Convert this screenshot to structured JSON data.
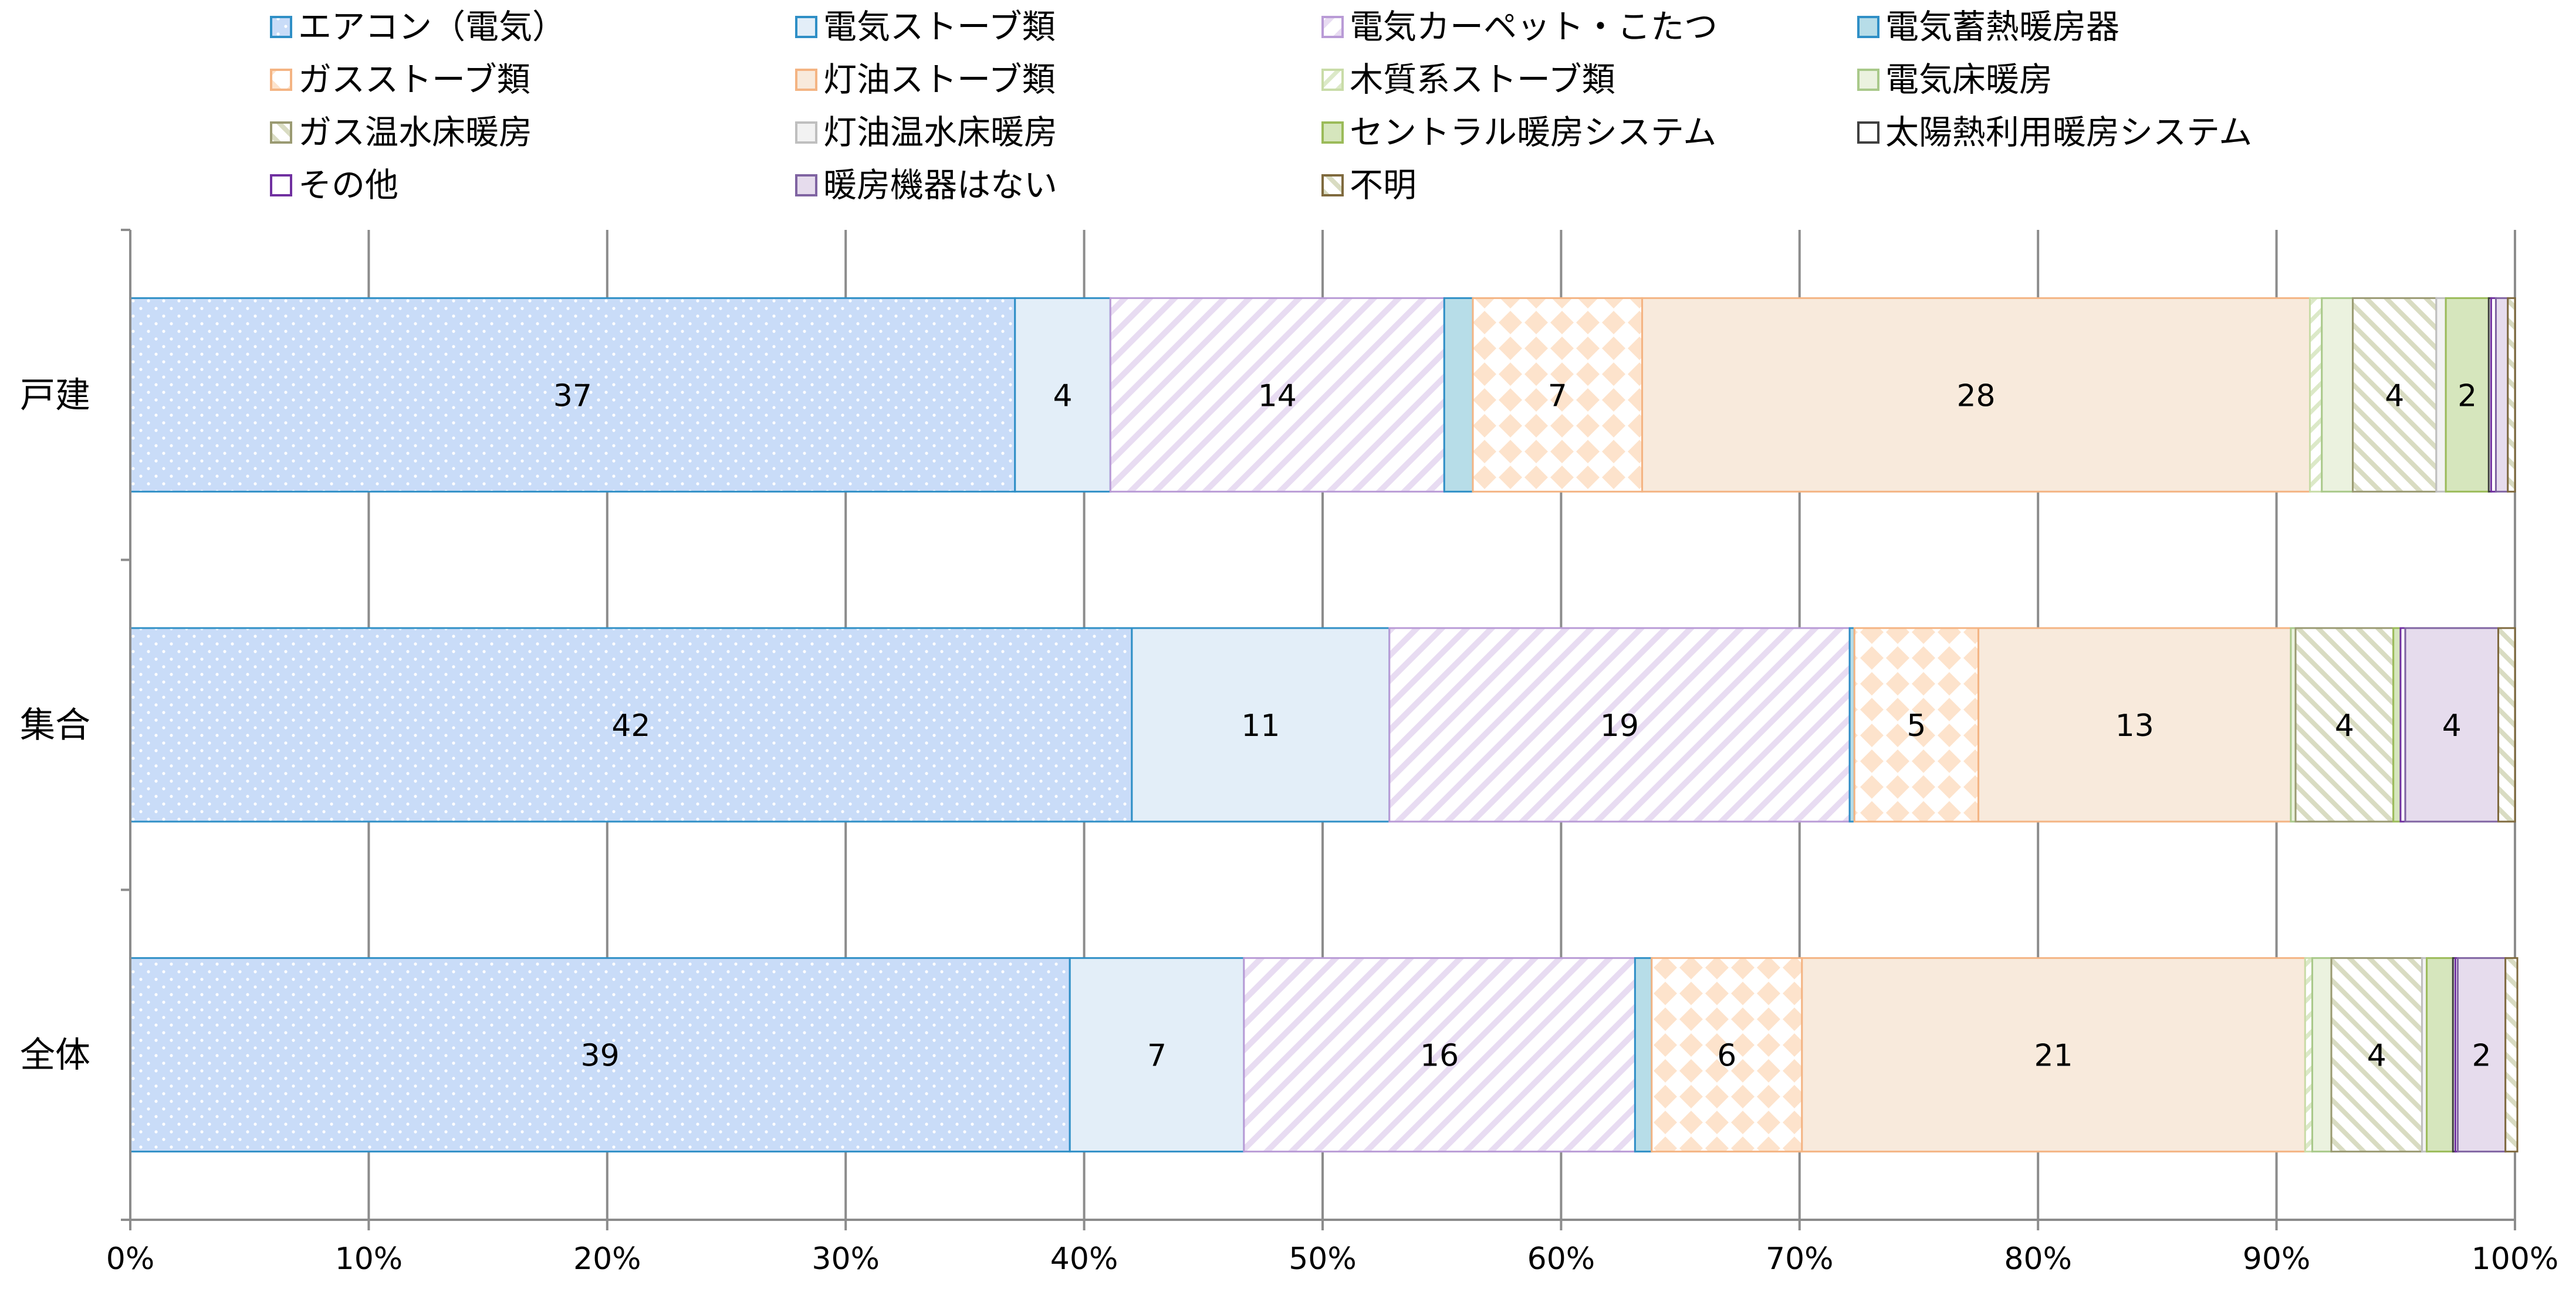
{
  "chart_data": {
    "type": "bar",
    "orientation": "horizontal",
    "stacked": "percent",
    "title": "",
    "xlabel": "",
    "ylabel": "",
    "xlim": [
      0,
      100
    ],
    "x_ticks": [
      "0%",
      "10%",
      "20%",
      "30%",
      "40%",
      "50%",
      "60%",
      "70%",
      "80%",
      "90%",
      "100%"
    ],
    "grid": true,
    "legend_position": "top",
    "categories": [
      "戸建",
      "集合",
      "全体"
    ],
    "series": [
      {
        "name": "エアコン（電気）",
        "values": [
          37.1,
          42.0,
          39.4
        ],
        "color": "#c9dcf8",
        "edge": "#2f8fc6",
        "pattern": "dots"
      },
      {
        "name": "電気ストーブ類",
        "values": [
          4.0,
          10.8,
          7.3
        ],
        "color": "#e3eef8",
        "edge": "#2f8fc6",
        "pattern": "solid"
      },
      {
        "name": "電気カーペット・こたつ",
        "values": [
          14.0,
          19.3,
          16.4
        ],
        "color": "#ffffff",
        "edge": "#b99bd6",
        "pattern": "diagonal"
      },
      {
        "name": "電気蓄熱暖房器",
        "values": [
          1.2,
          0.2,
          0.7
        ],
        "color": "#b7dde8",
        "edge": "#2f8fc6",
        "pattern": "solid"
      },
      {
        "name": "ガスストーブ類",
        "values": [
          7.1,
          5.2,
          6.3
        ],
        "color": "#fde3cc",
        "edge": "#f4b483",
        "pattern": "diamond"
      },
      {
        "name": "灯油ストーブ類",
        "values": [
          28.0,
          13.1,
          21.1
        ],
        "color": "#f8eadc",
        "edge": "#f4b483",
        "pattern": "solid"
      },
      {
        "name": "木質系ストーブ類",
        "values": [
          0.5,
          0.0,
          0.3
        ],
        "color": "#ffffff",
        "edge": "#c9dca8",
        "pattern": "diagonal-light"
      },
      {
        "name": "電気床暖房",
        "values": [
          1.3,
          0.2,
          0.8
        ],
        "color": "#ebf2df",
        "edge": "#a9c98a",
        "pattern": "solid"
      },
      {
        "name": "ガス温水床暖房",
        "values": [
          3.5,
          4.1,
          3.8
        ],
        "color": "#ffffff",
        "edge": "#9a9a72",
        "pattern": "backdiagonal"
      },
      {
        "name": "灯油温水床暖房",
        "values": [
          0.4,
          0.0,
          0.2
        ],
        "color": "#f2f2f2",
        "edge": "#bfbfbf",
        "pattern": "solid"
      },
      {
        "name": "セントラル暖房システム",
        "values": [
          1.8,
          0.3,
          1.1
        ],
        "color": "#d6e6bd",
        "edge": "#9bbb59",
        "pattern": "solid"
      },
      {
        "name": "太陽熱利用暖房システム",
        "values": [
          0.1,
          0.0,
          0.1
        ],
        "color": "#ffffff",
        "edge": "#404040",
        "pattern": "solid"
      },
      {
        "name": "その他",
        "values": [
          0.2,
          0.2,
          0.1
        ],
        "color": "#ffffff",
        "edge": "#7030a0",
        "pattern": "solid"
      },
      {
        "name": "暖房機器はない",
        "values": [
          0.5,
          3.9,
          2.0
        ],
        "color": "#e6dced",
        "edge": "#8064a2",
        "pattern": "solid"
      },
      {
        "name": "不明",
        "values": [
          0.3,
          0.7,
          0.5
        ],
        "color": "#ffffff",
        "edge": "#7f6a3e",
        "pattern": "backdiagonal"
      }
    ],
    "data_labels": [
      {
        "category": "戸建",
        "series": "エアコン（電気）",
        "text": "37"
      },
      {
        "category": "戸建",
        "series": "電気ストーブ類",
        "text": "4"
      },
      {
        "category": "戸建",
        "series": "電気カーペット・こたつ",
        "text": "14"
      },
      {
        "category": "戸建",
        "series": "ガスストーブ類",
        "text": "7"
      },
      {
        "category": "戸建",
        "series": "灯油ストーブ類",
        "text": "28"
      },
      {
        "category": "戸建",
        "series": "ガス温水床暖房",
        "text": "4"
      },
      {
        "category": "戸建",
        "series": "セントラル暖房システム",
        "text": "2"
      },
      {
        "category": "集合",
        "series": "エアコン（電気）",
        "text": "42"
      },
      {
        "category": "集合",
        "series": "電気ストーブ類",
        "text": "11"
      },
      {
        "category": "集合",
        "series": "電気カーペット・こたつ",
        "text": "19"
      },
      {
        "category": "集合",
        "series": "ガスストーブ類",
        "text": "5"
      },
      {
        "category": "集合",
        "series": "灯油ストーブ類",
        "text": "13"
      },
      {
        "category": "集合",
        "series": "ガス温水床暖房",
        "text": "4"
      },
      {
        "category": "集合",
        "series": "暖房機器はない",
        "text": "4"
      },
      {
        "category": "全体",
        "series": "エアコン（電気）",
        "text": "39"
      },
      {
        "category": "全体",
        "series": "電気ストーブ類",
        "text": "7"
      },
      {
        "category": "全体",
        "series": "電気カーペット・こたつ",
        "text": "16"
      },
      {
        "category": "全体",
        "series": "ガスストーブ類",
        "text": "6"
      },
      {
        "category": "全体",
        "series": "灯油ストーブ類",
        "text": "21"
      },
      {
        "category": "全体",
        "series": "ガス温水床暖房",
        "text": "4"
      },
      {
        "category": "全体",
        "series": "暖房機器はない",
        "text": "2"
      }
    ]
  }
}
